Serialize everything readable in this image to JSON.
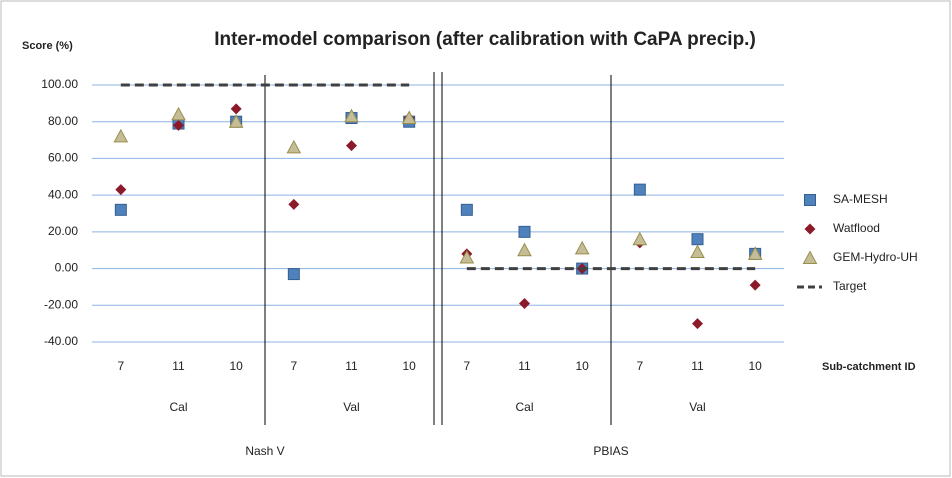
{
  "chart_data": {
    "type": "scatter",
    "title": "Inter-model comparison (after calibration with CaPA precip.)",
    "y_label": "Score (%)",
    "x_label": "Sub-catchment ID",
    "categories": [
      "7",
      "11",
      "10",
      "7",
      "11",
      "10",
      "7",
      "11",
      "10",
      "7",
      "11",
      "10"
    ],
    "subgroups": [
      "Cal",
      "Val",
      "Cal",
      "Val"
    ],
    "groups": [
      "Nash V",
      "PBIAS"
    ],
    "series": [
      {
        "name": "SA-MESH",
        "color": "#4f81bd",
        "marker": "square",
        "values": [
          32,
          79,
          80,
          -3,
          82,
          80,
          32,
          20,
          0,
          43,
          16,
          8
        ]
      },
      {
        "name": "Watflood",
        "color": "#8b1a2b",
        "marker": "diamond",
        "values": [
          43,
          78,
          87,
          35,
          67,
          82,
          8,
          -19,
          0,
          14,
          -30,
          -9
        ]
      },
      {
        "name": "GEM-Hydro-UH",
        "color": "#c4bd97",
        "marker": "triangle",
        "values": [
          72,
          84,
          80,
          66,
          83,
          82,
          6,
          10,
          11,
          16,
          9,
          8
        ]
      },
      {
        "name": "Target",
        "color": "#404040",
        "marker": "dashed-line",
        "values": [
          100,
          100,
          100,
          100,
          100,
          100,
          0,
          0,
          0,
          0,
          0,
          0
        ]
      }
    ],
    "ylim": [
      -40,
      100
    ],
    "yticks": [
      {
        "value": -40,
        "label": "-40.00"
      },
      {
        "value": -20,
        "label": "-20.00"
      },
      {
        "value": 0,
        "label": "0.00"
      },
      {
        "value": 20,
        "label": "20.00"
      },
      {
        "value": 40,
        "label": "40.00"
      },
      {
        "value": 60,
        "label": "60.00"
      },
      {
        "value": 80,
        "label": "80.00"
      },
      {
        "value": 100,
        "label": "100.00"
      }
    ],
    "grid": true,
    "legend": "right"
  }
}
